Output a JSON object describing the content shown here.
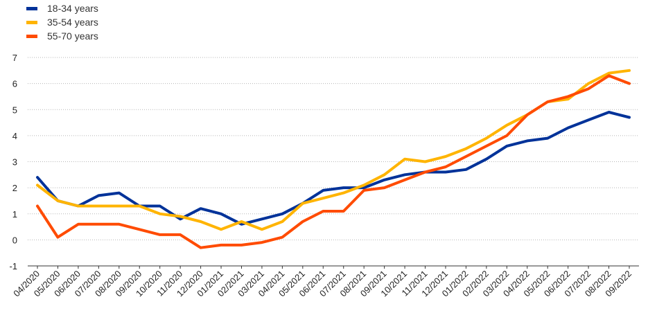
{
  "chart_data": {
    "type": "line",
    "title": "",
    "xlabel": "",
    "ylabel": "",
    "ylim": [
      -1,
      7
    ],
    "yticks": [
      -1,
      0,
      1,
      2,
      3,
      4,
      5,
      6,
      7
    ],
    "grid": "horizontal dotted",
    "legend_position": "top-left",
    "categories": [
      "04/2020",
      "05/2020",
      "06/2020",
      "07/2020",
      "08/2020",
      "09/2020",
      "10/2020",
      "11/2020",
      "12/2020",
      "01/2021",
      "02/2021",
      "03/2021",
      "04/2021",
      "05/2021",
      "06/2021",
      "07/2021",
      "08/2021",
      "09/2021",
      "10/2021",
      "11/2021",
      "12/2021",
      "01/2022",
      "02/2022",
      "03/2022",
      "04/2022",
      "05/2022",
      "06/2022",
      "07/2022",
      "08/2022",
      "09/2022"
    ],
    "series": [
      {
        "name": "18-34 years",
        "color": "#003299",
        "values": [
          2.4,
          1.5,
          1.3,
          1.7,
          1.8,
          1.3,
          1.3,
          0.8,
          1.2,
          1.0,
          0.6,
          0.8,
          1.0,
          1.4,
          1.9,
          2.0,
          2.0,
          2.3,
          2.5,
          2.6,
          2.6,
          2.7,
          3.1,
          3.6,
          3.8,
          3.9,
          4.3,
          4.6,
          4.9,
          4.7
        ]
      },
      {
        "name": "35-54 years",
        "color": "#FFB400",
        "values": [
          2.1,
          1.5,
          1.3,
          1.3,
          1.3,
          1.3,
          1.0,
          0.9,
          0.7,
          0.4,
          0.7,
          0.4,
          0.7,
          1.4,
          1.6,
          1.8,
          2.1,
          2.5,
          3.1,
          3.0,
          3.2,
          3.5,
          3.9,
          4.4,
          4.8,
          5.3,
          5.4,
          6.0,
          6.4,
          6.5
        ]
      },
      {
        "name": "55-70 years",
        "color": "#FF4B00",
        "values": [
          1.3,
          0.1,
          0.6,
          0.6,
          0.6,
          0.4,
          0.2,
          0.2,
          -0.3,
          -0.2,
          -0.2,
          -0.1,
          0.1,
          0.7,
          1.1,
          1.1,
          1.9,
          2.0,
          2.3,
          2.6,
          2.8,
          3.2,
          3.6,
          4.0,
          4.8,
          5.3,
          5.5,
          5.8,
          6.3,
          6.0
        ]
      }
    ]
  }
}
